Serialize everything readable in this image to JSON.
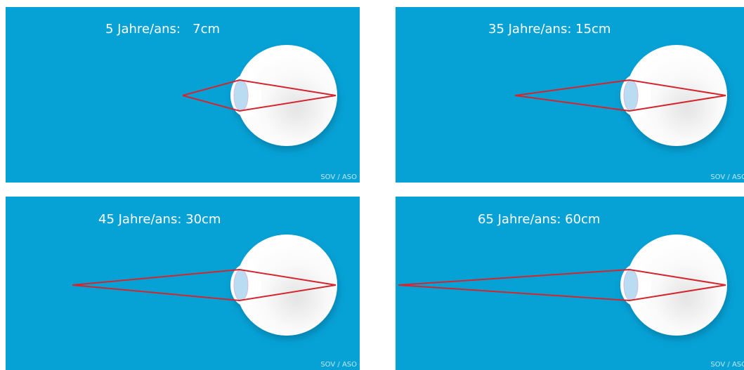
{
  "panels": [
    {
      "label": "5 Jahre/ans:   7cm",
      "credit": "SOV / ASO"
    },
    {
      "label": "35 Jahre/ans: 15cm",
      "credit": "SOV / ASO"
    },
    {
      "label": "45 Jahre/ans: 30cm",
      "credit": "SOV / ASO"
    },
    {
      "label": "65 Jahre/ans: 60cm",
      "credit": "SOV / ASO"
    }
  ]
}
